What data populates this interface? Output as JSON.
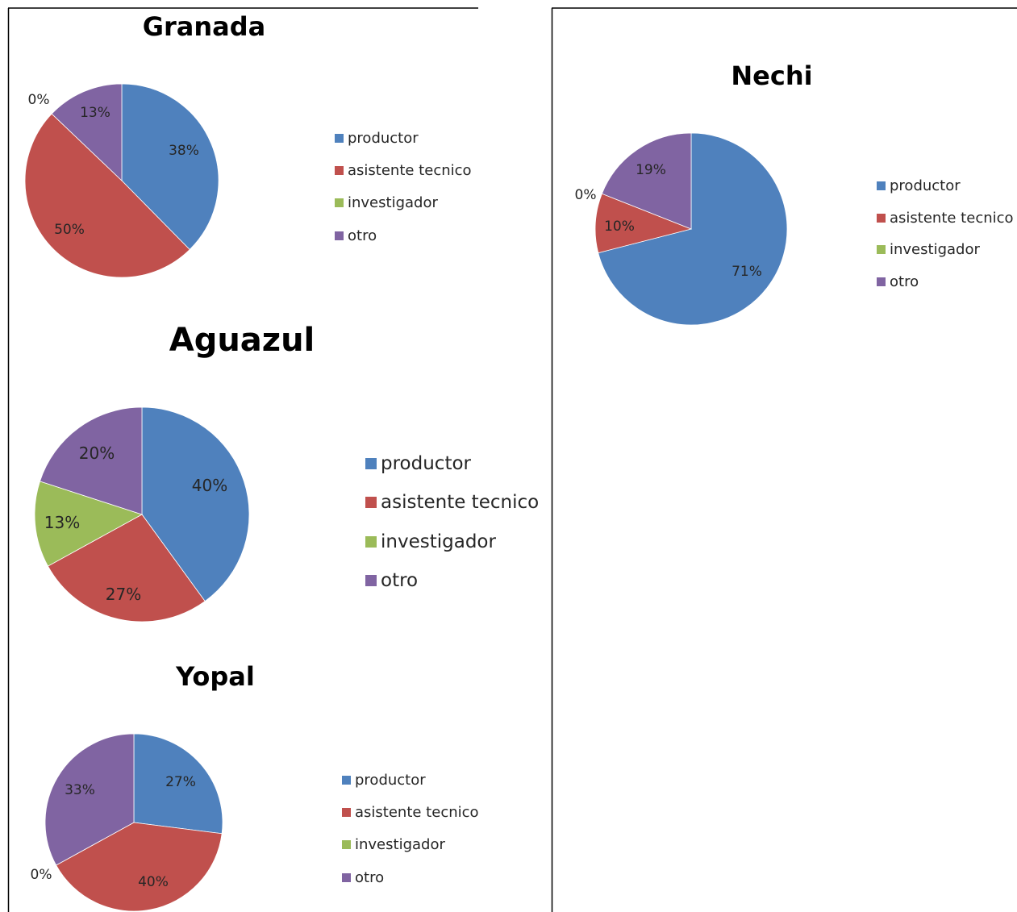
{
  "colors": {
    "productor": "#4f81bd",
    "asistente_tecnico": "#c0504d",
    "investigador": "#9bbb59",
    "otro": "#8064a2"
  },
  "chart_data": [
    {
      "type": "pie",
      "title": "Granada",
      "categories": [
        "productor",
        "asistente tecnico",
        "investigador",
        "otro"
      ],
      "values": [
        38,
        50,
        0,
        13
      ],
      "labels": [
        "38%",
        "50%",
        "0%",
        "13%"
      ],
      "legend": "right"
    },
    {
      "type": "pie",
      "title": "Aguazul",
      "categories": [
        "productor",
        "asistente tecnico",
        "investigador",
        "otro"
      ],
      "values": [
        40,
        27,
        13,
        20
      ],
      "labels": [
        "40%",
        "27%",
        "13%",
        "20%"
      ],
      "legend": "right"
    },
    {
      "type": "pie",
      "title": "Yopal",
      "categories": [
        "productor",
        "asistente tecnico",
        "investigador",
        "otro"
      ],
      "values": [
        27,
        40,
        0,
        33
      ],
      "labels": [
        "27%",
        "40%",
        "0%",
        "33%"
      ],
      "legend": "right"
    },
    {
      "type": "pie",
      "title": "Nechi",
      "categories": [
        "productor",
        "asistente tecnico",
        "investigador",
        "otro"
      ],
      "values": [
        71,
        10,
        0,
        19
      ],
      "labels": [
        "71%",
        "10%",
        "0%",
        "19%"
      ],
      "legend": "right"
    }
  ]
}
